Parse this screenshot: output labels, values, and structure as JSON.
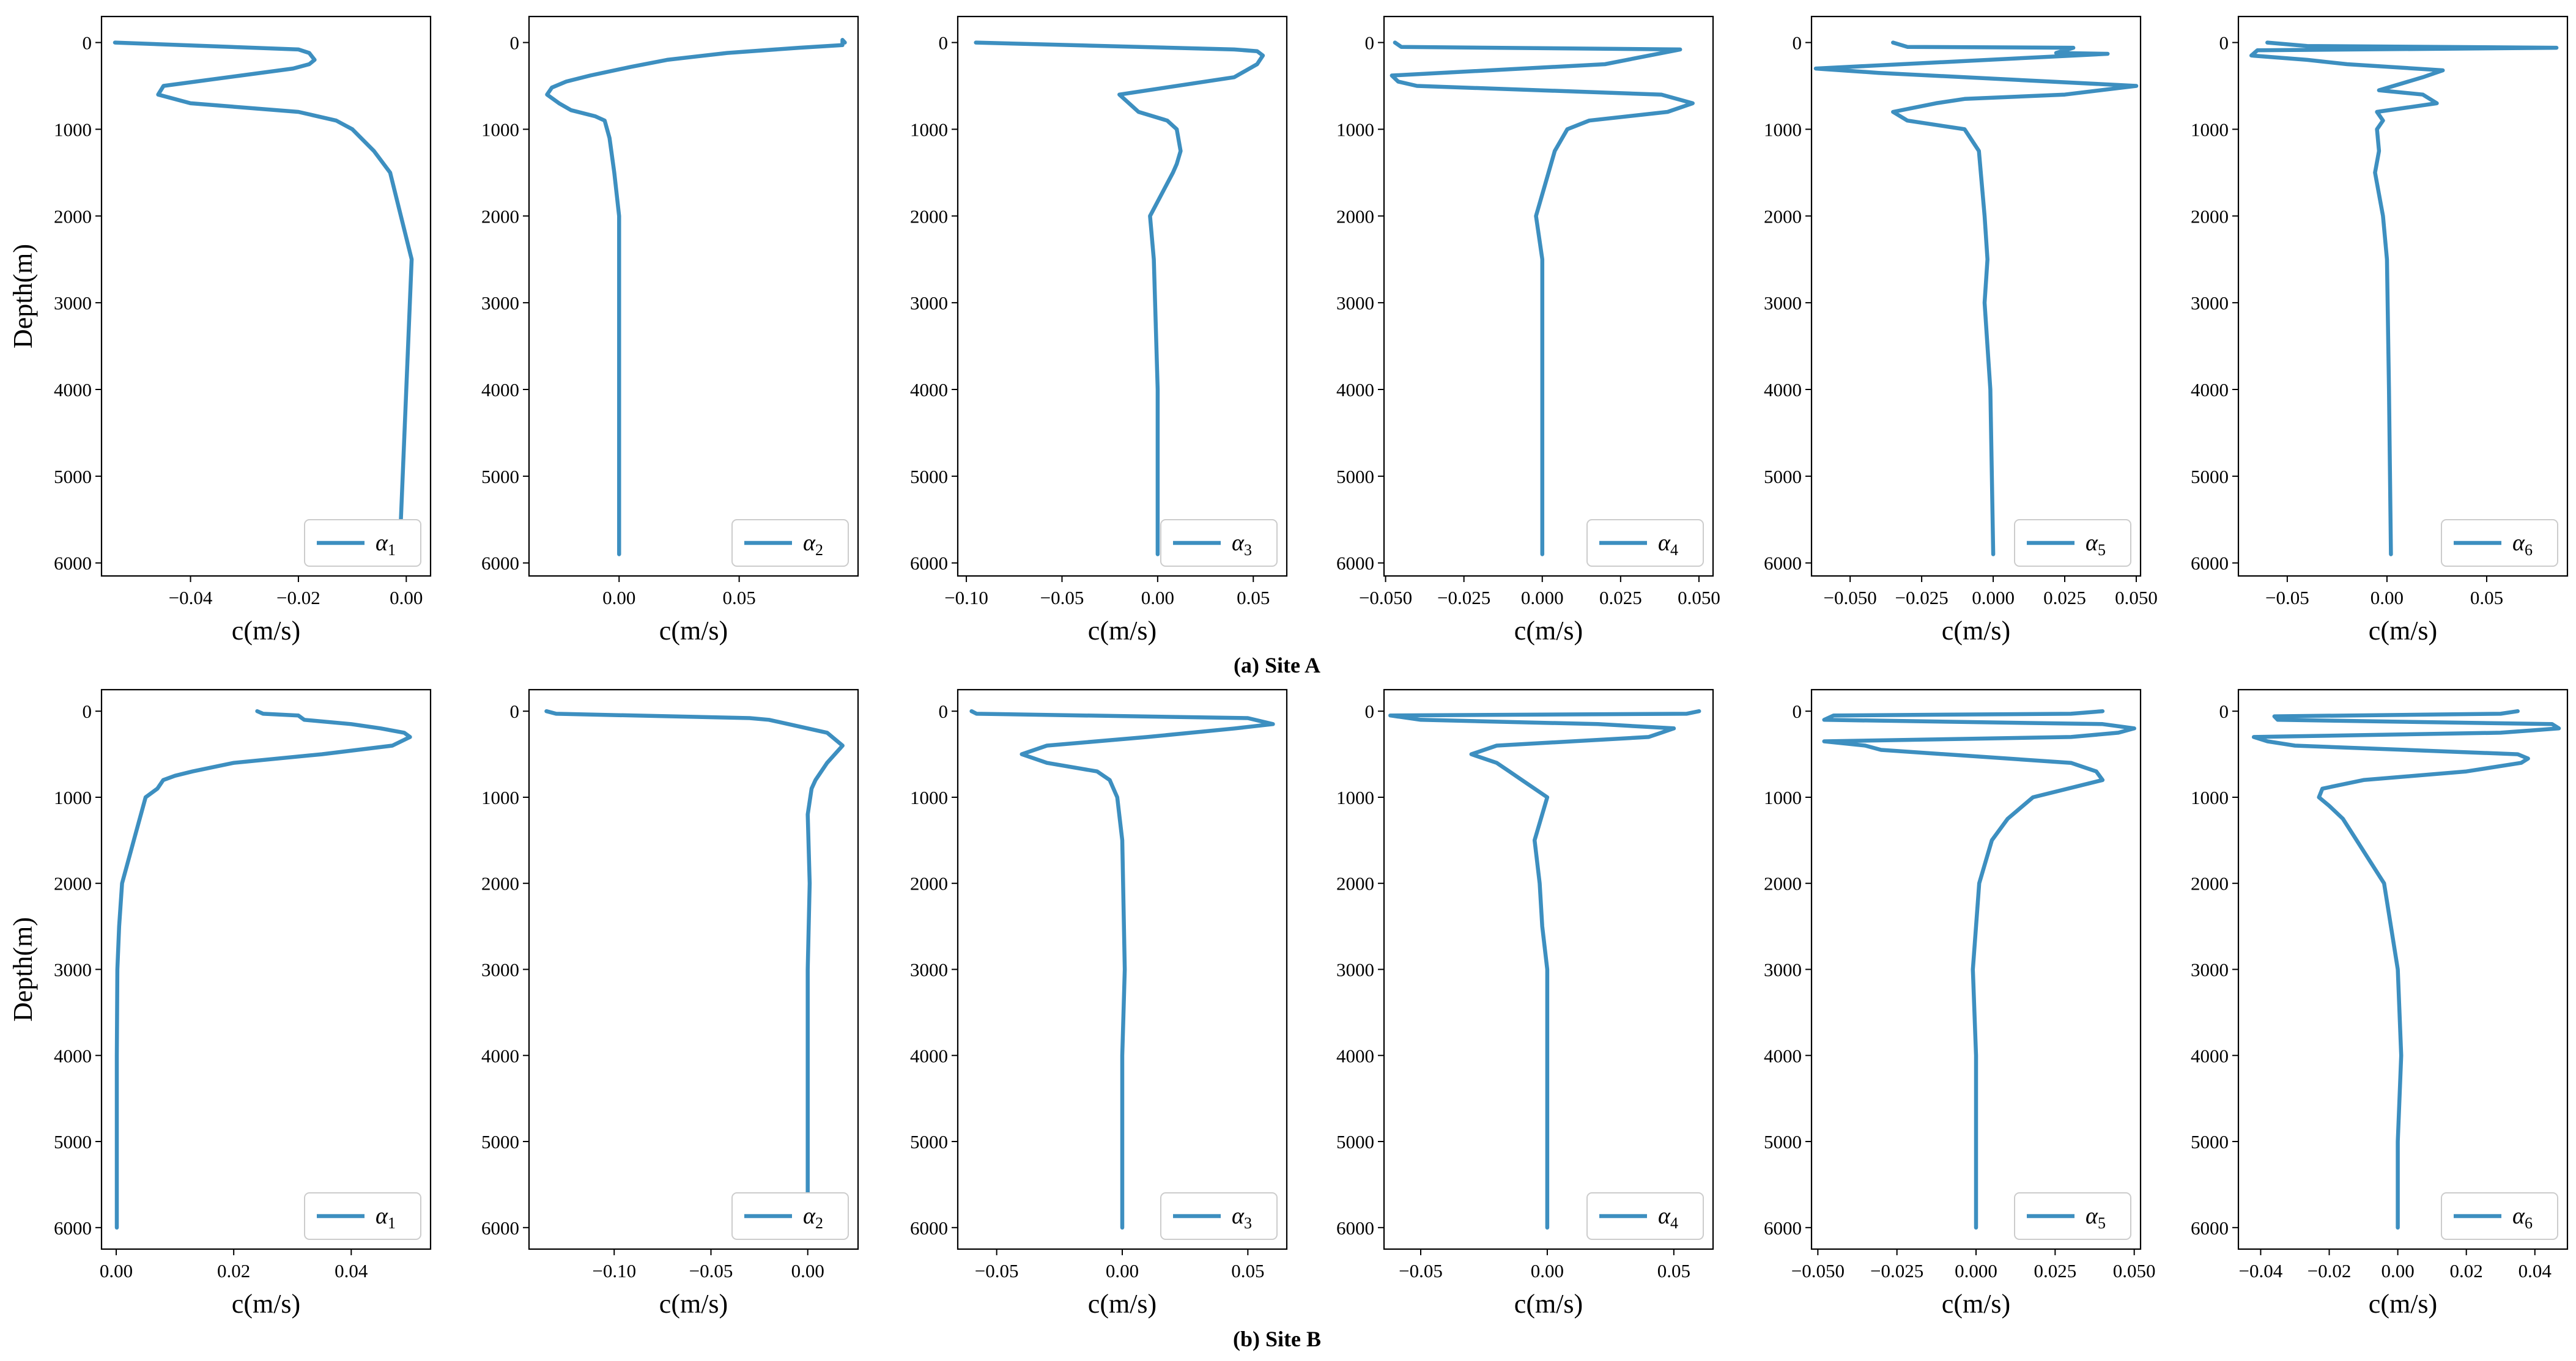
{
  "figure": {
    "line_color": "#3d8fc0",
    "rows": [
      {
        "caption": "(a) Site A",
        "ylabel": "Depth(m)"
      },
      {
        "caption": "(b) Site B",
        "ylabel": "Depth(m)"
      }
    ]
  },
  "chart_data": [
    {
      "type": "line",
      "row": 0,
      "col": 0,
      "site": "Site A",
      "legend": "α1",
      "xlabel": "c(m/s)",
      "ylabel": "Depth(m)",
      "xlim": [
        -0.0565,
        0.0045
      ],
      "ylim": [
        6150,
        -300
      ],
      "xticks": [
        -0.04,
        -0.02,
        0.0
      ],
      "xtick_labels": [
        "−0.04",
        "−0.02",
        "0.00"
      ],
      "yticks": [
        0,
        1000,
        2000,
        3000,
        4000,
        5000,
        6000
      ],
      "ytick_labels": [
        "0",
        "1000",
        "2000",
        "3000",
        "4000",
        "5000",
        "6000"
      ],
      "x": [
        -0.054,
        -0.02,
        -0.018,
        -0.017,
        -0.018,
        -0.021,
        -0.045,
        -0.046,
        -0.04,
        -0.02,
        -0.013,
        -0.01,
        -0.006,
        -0.003,
        -0.001,
        0.001,
        0.0,
        -0.001
      ],
      "depth": [
        0,
        80,
        120,
        200,
        250,
        300,
        500,
        600,
        700,
        800,
        900,
        1000,
        1250,
        1500,
        2000,
        2500,
        4000,
        5500
      ]
    },
    {
      "type": "line",
      "row": 0,
      "col": 1,
      "site": "Site A",
      "legend": "α2",
      "xlabel": "c(m/s)",
      "ylabel": "",
      "xlim": [
        -0.0375,
        0.0995
      ],
      "ylim": [
        6150,
        -300
      ],
      "xticks": [
        0.0,
        0.05
      ],
      "xtick_labels": [
        "0.00",
        "0.05"
      ],
      "yticks": [
        0,
        1000,
        2000,
        3000,
        4000,
        5000,
        6000
      ],
      "ytick_labels": [
        "0",
        "1000",
        "2000",
        "3000",
        "4000",
        "5000",
        "6000"
      ],
      "x": [
        0.094,
        0.093,
        0.093,
        0.075,
        0.045,
        0.02,
        0.005,
        -0.012,
        -0.022,
        -0.028,
        -0.03,
        -0.025,
        -0.02,
        -0.01,
        -0.006,
        -0.004,
        -0.002,
        0.0,
        0.0,
        0.0,
        0.0
      ],
      "depth": [
        0,
        -30,
        30,
        60,
        120,
        200,
        280,
        380,
        450,
        520,
        600,
        700,
        780,
        850,
        900,
        1100,
        1500,
        2000,
        3000,
        4000,
        5900
      ]
    },
    {
      "type": "line",
      "row": 0,
      "col": 2,
      "site": "Site A",
      "legend": "α3",
      "xlabel": "c(m/s)",
      "ylabel": "",
      "xlim": [
        -0.1045,
        0.0675
      ],
      "ylim": [
        6150,
        -300
      ],
      "xticks": [
        -0.1,
        -0.05,
        0.0,
        0.05
      ],
      "xtick_labels": [
        "−0.10",
        "−0.05",
        "0.00",
        "0.05"
      ],
      "yticks": [
        0,
        1000,
        2000,
        3000,
        4000,
        5000,
        6000
      ],
      "ytick_labels": [
        "0",
        "1000",
        "2000",
        "3000",
        "4000",
        "5000",
        "6000"
      ],
      "x": [
        -0.095,
        0.04,
        0.052,
        0.055,
        0.052,
        0.04,
        -0.02,
        -0.01,
        0.005,
        0.01,
        0.012,
        0.01,
        0.008,
        -0.004,
        -0.002,
        0.0,
        0.0
      ],
      "depth": [
        0,
        80,
        100,
        150,
        250,
        400,
        600,
        800,
        900,
        1000,
        1250,
        1400,
        1500,
        2000,
        2500,
        4000,
        5900
      ]
    },
    {
      "type": "line",
      "row": 0,
      "col": 3,
      "site": "Site A",
      "legend": "α4",
      "xlabel": "c(m/s)",
      "ylabel": "",
      "xlim": [
        -0.0505,
        0.0545
      ],
      "ylim": [
        6150,
        -300
      ],
      "xticks": [
        -0.05,
        -0.025,
        0.0,
        0.025,
        0.05
      ],
      "xtick_labels": [
        "−0.050",
        "−0.025",
        "0.000",
        "0.025",
        "0.050"
      ],
      "yticks": [
        0,
        1000,
        2000,
        3000,
        4000,
        5000,
        6000
      ],
      "ytick_labels": [
        "0",
        "1000",
        "2000",
        "3000",
        "4000",
        "5000",
        "6000"
      ],
      "x": [
        -0.047,
        -0.045,
        0.044,
        0.02,
        -0.048,
        -0.046,
        -0.04,
        0.038,
        0.048,
        0.04,
        0.015,
        0.008,
        0.004,
        0.002,
        -0.002,
        0.0,
        0.0,
        0.0
      ],
      "depth": [
        0,
        50,
        80,
        250,
        380,
        450,
        500,
        600,
        700,
        800,
        900,
        1000,
        1250,
        1500,
        2000,
        2500,
        4000,
        5900
      ]
    },
    {
      "type": "line",
      "row": 0,
      "col": 4,
      "site": "Site A",
      "legend": "α5",
      "xlabel": "c(m/s)",
      "ylabel": "",
      "xlim": [
        -0.0635,
        0.0515
      ],
      "ylim": [
        6150,
        -300
      ],
      "xticks": [
        -0.05,
        -0.025,
        0.0,
        0.025,
        0.05
      ],
      "xtick_labels": [
        "−0.050",
        "−0.025",
        "0.000",
        "0.025",
        "0.050"
      ],
      "yticks": [
        0,
        1000,
        2000,
        3000,
        4000,
        5000,
        6000
      ],
      "ytick_labels": [
        "0",
        "1000",
        "2000",
        "3000",
        "4000",
        "5000",
        "6000"
      ],
      "x": [
        -0.035,
        -0.03,
        0.028,
        0.022,
        0.04,
        -0.062,
        -0.04,
        0.05,
        0.025,
        -0.01,
        -0.02,
        -0.035,
        -0.03,
        -0.01,
        -0.005,
        -0.003,
        -0.002,
        -0.003,
        -0.001,
        0.0
      ],
      "depth": [
        0,
        50,
        60,
        120,
        130,
        300,
        350,
        500,
        600,
        650,
        700,
        800,
        900,
        1000,
        1250,
        2000,
        2500,
        3000,
        4000,
        5900
      ]
    },
    {
      "type": "line",
      "row": 0,
      "col": 5,
      "site": "Site A",
      "legend": "α6",
      "xlabel": "c(m/s)",
      "ylabel": "",
      "xlim": [
        -0.0745,
        0.0905
      ],
      "ylim": [
        6150,
        -300
      ],
      "xticks": [
        -0.05,
        0.0,
        0.05
      ],
      "xtick_labels": [
        "−0.05",
        "0.00",
        "0.05"
      ],
      "yticks": [
        0,
        1000,
        2000,
        3000,
        4000,
        5000,
        6000
      ],
      "ytick_labels": [
        "0",
        "1000",
        "2000",
        "3000",
        "4000",
        "5000",
        "6000"
      ],
      "x": [
        -0.06,
        -0.04,
        0.085,
        -0.065,
        -0.068,
        -0.04,
        -0.02,
        0.028,
        0.018,
        -0.004,
        0.018,
        0.025,
        -0.005,
        -0.002,
        -0.005,
        -0.004,
        -0.006,
        -0.002,
        0.0,
        0.001,
        0.002
      ],
      "depth": [
        0,
        40,
        60,
        90,
        150,
        200,
        250,
        320,
        400,
        550,
        600,
        700,
        800,
        900,
        1000,
        1250,
        1500,
        2000,
        2500,
        4000,
        5900
      ]
    },
    {
      "type": "line",
      "row": 1,
      "col": 0,
      "site": "Site B",
      "legend": "α1",
      "xlabel": "c(m/s)",
      "ylabel": "Depth(m)",
      "xlim": [
        -0.0025,
        0.0535
      ],
      "ylim": [
        6250,
        -250
      ],
      "xticks": [
        0.0,
        0.02,
        0.04
      ],
      "xtick_labels": [
        "0.00",
        "0.02",
        "0.04"
      ],
      "yticks": [
        0,
        1000,
        2000,
        3000,
        4000,
        5000,
        6000
      ],
      "ytick_labels": [
        "0",
        "1000",
        "2000",
        "3000",
        "4000",
        "5000",
        "6000"
      ],
      "x": [
        0.024,
        0.025,
        0.031,
        0.032,
        0.04,
        0.045,
        0.049,
        0.05,
        0.047,
        0.035,
        0.02,
        0.013,
        0.01,
        0.008,
        0.007,
        0.005,
        0.003,
        0.001,
        0.0005,
        0.0002,
        0.0001,
        0.0001
      ],
      "depth": [
        0,
        30,
        50,
        100,
        150,
        200,
        250,
        300,
        400,
        500,
        600,
        700,
        750,
        800,
        900,
        1000,
        1500,
        2000,
        2500,
        3000,
        4000,
        6000
      ]
    },
    {
      "type": "line",
      "row": 1,
      "col": 1,
      "site": "Site B",
      "legend": "α2",
      "xlabel": "c(m/s)",
      "ylabel": "",
      "xlim": [
        -0.144,
        0.026
      ],
      "ylim": [
        6250,
        -250
      ],
      "xticks": [
        -0.1,
        -0.05,
        0.0
      ],
      "xtick_labels": [
        "−0.10",
        "−0.05",
        "0.00"
      ],
      "yticks": [
        0,
        1000,
        2000,
        3000,
        4000,
        5000,
        6000
      ],
      "ytick_labels": [
        "0",
        "1000",
        "2000",
        "3000",
        "4000",
        "5000",
        "6000"
      ],
      "x": [
        -0.135,
        -0.13,
        -0.03,
        -0.02,
        -0.01,
        0.01,
        0.018,
        0.01,
        0.004,
        0.002,
        0.0,
        0.001,
        0.0,
        0.0,
        0.0,
        0.0
      ],
      "depth": [
        0,
        30,
        80,
        100,
        150,
        250,
        400,
        600,
        800,
        900,
        1200,
        2000,
        3000,
        4000,
        5000,
        5600
      ]
    },
    {
      "type": "line",
      "row": 1,
      "col": 2,
      "site": "Site B",
      "legend": "α3",
      "xlabel": "c(m/s)",
      "ylabel": "",
      "xlim": [
        -0.0655,
        0.0655
      ],
      "ylim": [
        6250,
        -250
      ],
      "xticks": [
        -0.05,
        0.0,
        0.05
      ],
      "xtick_labels": [
        "−0.05",
        "0.00",
        "0.05"
      ],
      "yticks": [
        0,
        1000,
        2000,
        3000,
        4000,
        5000,
        6000
      ],
      "ytick_labels": [
        "0",
        "1000",
        "2000",
        "3000",
        "4000",
        "5000",
        "6000"
      ],
      "x": [
        -0.06,
        -0.058,
        0.05,
        0.06,
        0.045,
        0.01,
        -0.03,
        -0.04,
        -0.03,
        -0.01,
        -0.005,
        -0.002,
        -0.001,
        0.0,
        0.001,
        0.0,
        0.0
      ],
      "depth": [
        0,
        30,
        80,
        150,
        200,
        300,
        400,
        500,
        600,
        700,
        800,
        1000,
        1250,
        1500,
        3000,
        4000,
        6000
      ]
    },
    {
      "type": "line",
      "row": 1,
      "col": 3,
      "site": "Site B",
      "legend": "α4",
      "xlabel": "c(m/s)",
      "ylabel": "",
      "xlim": [
        -0.0645,
        0.0655
      ],
      "ylim": [
        6250,
        -250
      ],
      "xticks": [
        -0.05,
        0.0,
        0.05
      ],
      "xtick_labels": [
        "−0.05",
        "0.00",
        "0.05"
      ],
      "yticks": [
        0,
        1000,
        2000,
        3000,
        4000,
        5000,
        6000
      ],
      "ytick_labels": [
        "0",
        "1000",
        "2000",
        "3000",
        "4000",
        "5000",
        "6000"
      ],
      "x": [
        0.06,
        0.055,
        -0.062,
        -0.05,
        0.02,
        0.05,
        0.045,
        0.04,
        -0.02,
        -0.03,
        -0.02,
        -0.015,
        -0.01,
        0.0,
        -0.005,
        -0.003,
        -0.002,
        0.0,
        0.0,
        0.0
      ],
      "depth": [
        0,
        30,
        50,
        100,
        150,
        200,
        250,
        300,
        400,
        500,
        600,
        700,
        800,
        1000,
        1500,
        2000,
        2500,
        3000,
        4000,
        6000
      ]
    },
    {
      "type": "line",
      "row": 1,
      "col": 4,
      "site": "Site B",
      "legend": "α5",
      "xlabel": "c(m/s)",
      "ylabel": "",
      "xlim": [
        -0.052,
        0.052
      ],
      "ylim": [
        6250,
        -250
      ],
      "xticks": [
        -0.05,
        -0.025,
        0.0,
        0.025,
        0.05
      ],
      "xtick_labels": [
        "−0.050",
        "−0.025",
        "0.000",
        "0.025",
        "0.050"
      ],
      "yticks": [
        0,
        1000,
        2000,
        3000,
        4000,
        5000,
        6000
      ],
      "ytick_labels": [
        "0",
        "1000",
        "2000",
        "3000",
        "4000",
        "5000",
        "6000"
      ],
      "x": [
        0.04,
        0.03,
        -0.045,
        -0.048,
        0.04,
        0.05,
        0.045,
        0.03,
        -0.048,
        -0.035,
        -0.03,
        0.03,
        0.038,
        0.04,
        0.018,
        0.01,
        0.005,
        0.001,
        0.0,
        -0.001,
        0.0,
        0.0
      ],
      "depth": [
        0,
        30,
        50,
        100,
        150,
        200,
        250,
        300,
        350,
        400,
        450,
        600,
        700,
        800,
        1000,
        1250,
        1500,
        2000,
        2500,
        3000,
        4000,
        6000
      ]
    },
    {
      "type": "line",
      "row": 1,
      "col": 5,
      "site": "Site B",
      "legend": "α6",
      "xlabel": "c(m/s)",
      "ylabel": "",
      "xlim": [
        -0.0465,
        0.0495
      ],
      "ylim": [
        6250,
        -250
      ],
      "xticks": [
        -0.04,
        -0.02,
        0.0,
        0.02,
        0.04
      ],
      "xtick_labels": [
        "−0.04",
        "−0.02",
        "0.00",
        "0.02",
        "0.04"
      ],
      "yticks": [
        0,
        1000,
        2000,
        3000,
        4000,
        5000,
        6000
      ],
      "ytick_labels": [
        "0",
        "1000",
        "2000",
        "3000",
        "4000",
        "5000",
        "6000"
      ],
      "x": [
        0.035,
        0.03,
        -0.036,
        -0.035,
        0.045,
        0.047,
        0.04,
        0.03,
        -0.042,
        -0.038,
        -0.03,
        0.035,
        0.038,
        0.036,
        0.02,
        -0.01,
        -0.022,
        -0.023,
        -0.02,
        -0.016,
        -0.012,
        -0.004,
        -0.002,
        0.0,
        0.001,
        0.0,
        0.0
      ],
      "depth": [
        0,
        30,
        60,
        100,
        150,
        200,
        220,
        250,
        300,
        350,
        400,
        500,
        550,
        600,
        700,
        800,
        900,
        1000,
        1100,
        1250,
        1500,
        2000,
        2500,
        3000,
        4000,
        5000,
        6000
      ]
    }
  ]
}
